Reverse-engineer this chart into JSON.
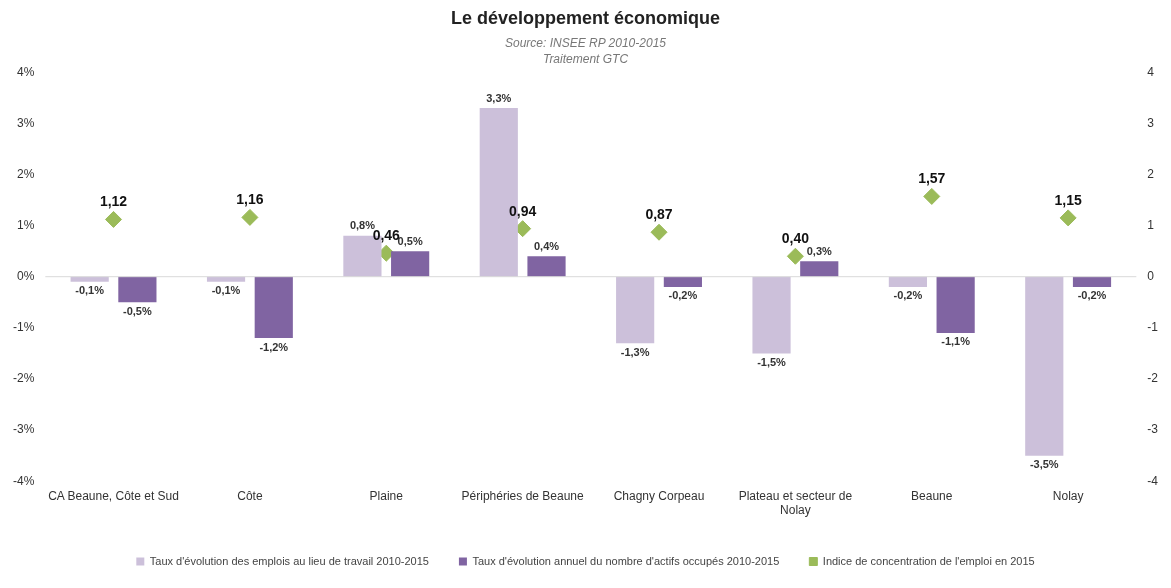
{
  "chart_data": {
    "type": "bar",
    "title": "Le développement économique",
    "subtitle": "Source: INSEE RP 2010-2015",
    "annotations": [
      "Traitement GTC"
    ],
    "categories": [
      "CA Beaune, Côte et Sud",
      "Côte",
      "Plaine",
      "Périphéries de Beaune",
      "Chagny Corpeau",
      "Plateau et secteur de Nolay",
      "Beaune",
      "Nolay"
    ],
    "series": [
      {
        "name": "Taux d'évolution des emplois au lieu de travail 2010-2015",
        "color": "#ccc0da",
        "values": [
          -0.1,
          -0.1,
          0.8,
          3.3,
          -1.3,
          -1.5,
          -0.2,
          -3.5
        ],
        "value_labels": [
          "-0,1%",
          "-0,1%",
          "0,8%",
          "3,3%",
          "-1,3%",
          "-1,5%",
          "-0,2%",
          "-3,5%"
        ]
      },
      {
        "name": "Taux d'évolution annuel du nombre d'actifs occupés 2010-2015",
        "color": "#8064a2",
        "values": [
          -0.5,
          -1.2,
          0.5,
          0.4,
          -0.2,
          0.3,
          -1.1,
          -0.2
        ],
        "value_labels": [
          "-0,5%",
          "-1,2%",
          "0,5%",
          "0,4%",
          "-0,2%",
          "0,3%",
          "-1,1%",
          "-0,2%"
        ]
      },
      {
        "name": "Indice de concentration de l'emploi en 2015",
        "type": "scatter",
        "axis": "y2",
        "marker": "diamond",
        "color": "#9bbb59",
        "values": [
          1.12,
          1.16,
          0.46,
          0.94,
          0.87,
          0.4,
          1.57,
          1.15
        ],
        "value_labels": [
          "1,12",
          "1,16",
          "0,46",
          "0,94",
          "0,87",
          "0,40",
          "1,57",
          "1,15"
        ]
      }
    ],
    "ylim": [
      -4,
      4
    ],
    "yticks": [
      {
        "value": -4,
        "label": "-4%"
      },
      {
        "value": -3,
        "label": "-3%"
      },
      {
        "value": -2,
        "label": "-2%"
      },
      {
        "value": -1,
        "label": "-1%"
      },
      {
        "value": 0,
        "label": "0%"
      },
      {
        "value": 1,
        "label": "1%"
      },
      {
        "value": 2,
        "label": "2%"
      },
      {
        "value": 3,
        "label": "3%"
      },
      {
        "value": 4,
        "label": "4%"
      }
    ],
    "y2lim": [
      -4,
      4
    ],
    "y2ticks": [
      -4,
      -3,
      -2,
      -1,
      0,
      1,
      2,
      3,
      4
    ],
    "grid": false,
    "legend": "bottom",
    "ref_lines": [
      {
        "axis": "y",
        "value": 0,
        "color": "#d9d9d9"
      }
    ]
  }
}
